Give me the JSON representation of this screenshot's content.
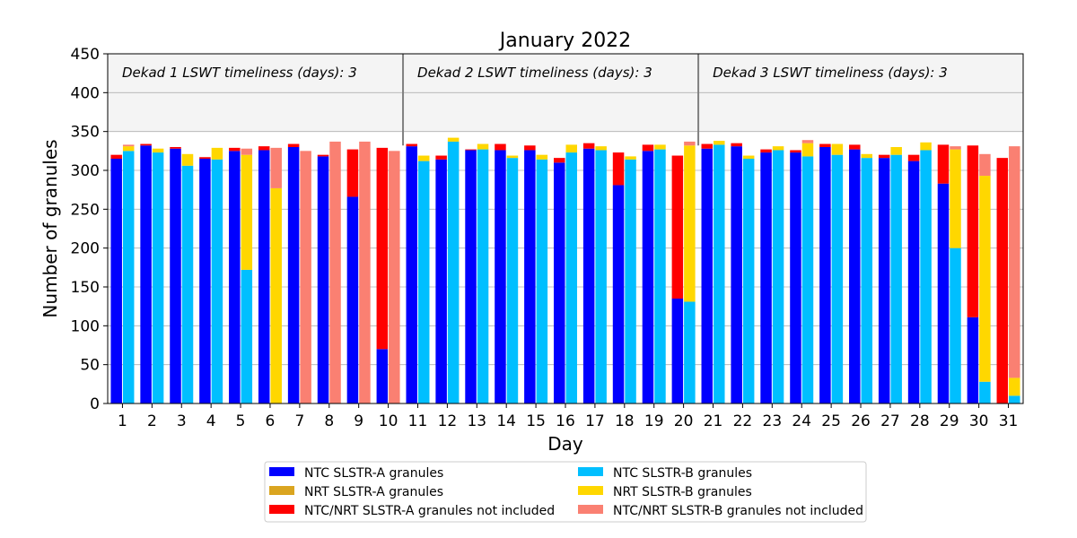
{
  "chart_data": {
    "type": "bar",
    "title": "January 2022",
    "xlabel": "Day",
    "ylabel": "Number of granules",
    "ylim": [
      0,
      450
    ],
    "yticks": [
      0,
      50,
      100,
      150,
      200,
      250,
      300,
      350,
      400,
      450
    ],
    "categories": [
      "1",
      "2",
      "3",
      "4",
      "5",
      "6",
      "7",
      "8",
      "9",
      "10",
      "11",
      "12",
      "13",
      "14",
      "15",
      "16",
      "17",
      "18",
      "19",
      "20",
      "21",
      "22",
      "23",
      "24",
      "25",
      "26",
      "27",
      "28",
      "29",
      "30",
      "31"
    ],
    "grid": true,
    "legend_position": "bottom-center",
    "dekad_labels": [
      "Dekad 1 LSWT timeliness (days): 3",
      "Dekad 2 LSWT timeliness (days): 3",
      "Dekad 3 LSWT timeliness (days): 3"
    ],
    "dekad_separators_after_day": [
      10,
      20
    ],
    "legend": [
      {
        "key": "a_ntc",
        "label": "NTC SLSTR-A granules",
        "color": "#0000ff"
      },
      {
        "key": "b_ntc",
        "label": "NTC SLSTR-B granules",
        "color": "#00bfff"
      },
      {
        "key": "a_nrt",
        "label": "NRT SLSTR-A granules",
        "color": "#daa520"
      },
      {
        "key": "b_nrt",
        "label": "NRT SLSTR-B granules",
        "color": "#ffd700"
      },
      {
        "key": "a_not",
        "label": "NTC/NRT SLSTR-A granules not included",
        "color": "#ff0000"
      },
      {
        "key": "b_not",
        "label": "NTC/NRT SLSTR-B granules not included",
        "color": "#fa8072"
      }
    ],
    "series_a": {
      "ntc": [
        315,
        332,
        328,
        315,
        325,
        326,
        330,
        318,
        266,
        70,
        331,
        314,
        326,
        326,
        326,
        310,
        328,
        281,
        325,
        135,
        328,
        331,
        323,
        323,
        330,
        327,
        316,
        312,
        283,
        111,
        0
      ],
      "nrt": [
        0,
        0,
        0,
        0,
        0,
        0,
        0,
        0,
        0,
        0,
        0,
        0,
        0,
        0,
        0,
        0,
        0,
        0,
        0,
        0,
        0,
        0,
        0,
        0,
        0,
        0,
        0,
        0,
        0,
        0,
        0
      ],
      "not_included": [
        5,
        2,
        2,
        2,
        4,
        5,
        4,
        2,
        61,
        259,
        3,
        5,
        1,
        8,
        6,
        6,
        7,
        42,
        8,
        184,
        6,
        4,
        4,
        3,
        4,
        6,
        4,
        8,
        50,
        221,
        316
      ]
    },
    "series_b": {
      "ntc": [
        325,
        323,
        306,
        314,
        172,
        0,
        0,
        0,
        0,
        0,
        312,
        337,
        327,
        316,
        314,
        323,
        326,
        314,
        327,
        131,
        333,
        315,
        326,
        318,
        320,
        316,
        320,
        326,
        200,
        28,
        10
      ],
      "nrt": [
        6,
        5,
        15,
        15,
        148,
        277,
        0,
        0,
        0,
        0,
        7,
        5,
        7,
        3,
        6,
        10,
        5,
        4,
        6,
        201,
        5,
        4,
        5,
        17,
        14,
        5,
        10,
        10,
        127,
        265,
        23
      ],
      "not_included": [
        2,
        0,
        0,
        0,
        8,
        52,
        325,
        337,
        337,
        325,
        0,
        0,
        0,
        0,
        0,
        0,
        0,
        0,
        0,
        5,
        0,
        0,
        0,
        4,
        0,
        0,
        0,
        0,
        4,
        28,
        298
      ]
    }
  }
}
